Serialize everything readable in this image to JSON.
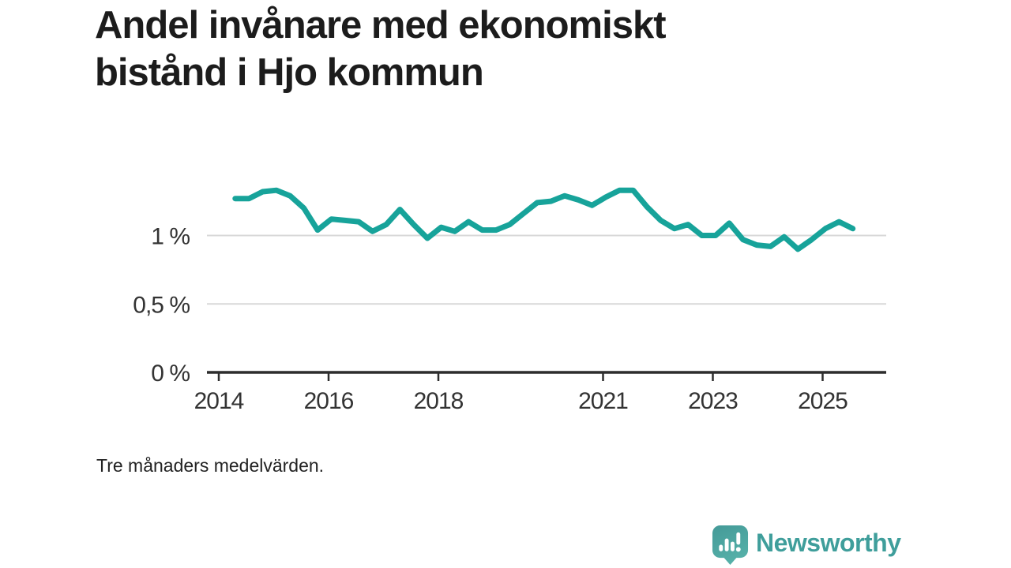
{
  "page": {
    "title": "Andel invånare med ekonomiskt bistånd i Hjo kommun",
    "title_lines": [
      "Andel invånare med ekonomiskt",
      "bistånd i Hjo kommun"
    ],
    "footnote": "Tre månaders medelvärden."
  },
  "brand": {
    "name": "Newsworthy",
    "icon": "speech-bubble-with-bar-chart-and-exclamation-icon"
  },
  "colors": {
    "background": "#ffffff",
    "title_text": "#1c1c1c",
    "axis_text": "#333333",
    "footnote_text": "#222222",
    "line": "#17a39a",
    "gridline": "#d8d8d8",
    "axis": "#2d2d2d",
    "brand_teal": "#47a29f",
    "brand_text": "#3f9e9b"
  },
  "chart_data": {
    "type": "line",
    "title": "Andel invånare med ekonomiskt bistånd i Hjo kommun",
    "subtitle": "Tre månaders medelvärden.",
    "series_name": "Andel invånare med ekonomiskt bistånd i Hjo kommun (tre månaders medelvärden)",
    "unit": "%",
    "decimal_separator": ",",
    "grid": "horizontal",
    "legend": "none",
    "xlim": [
      2013.78,
      2026.16
    ],
    "ylim": [
      0,
      1.45
    ],
    "x_ticks": [
      {
        "value": 2014,
        "label": "2014"
      },
      {
        "value": 2016,
        "label": "2016"
      },
      {
        "value": 2018,
        "label": "2018"
      },
      {
        "value": 2021,
        "label": "2021"
      },
      {
        "value": 2023,
        "label": "2023"
      },
      {
        "value": 2025,
        "label": "2025"
      }
    ],
    "y_ticks": [
      {
        "value": 1,
        "label": "1 %"
      },
      {
        "value": 0.5,
        "label": "0,5 %"
      },
      {
        "value": 0,
        "label": "0 %"
      }
    ],
    "x": [
      2014.3,
      2014.55,
      2014.8,
      2015.05,
      2015.3,
      2015.55,
      2015.8,
      2016.05,
      2016.3,
      2016.55,
      2016.8,
      2017.05,
      2017.3,
      2017.55,
      2017.8,
      2018.05,
      2018.3,
      2018.55,
      2018.8,
      2019.05,
      2019.3,
      2019.55,
      2019.8,
      2020.05,
      2020.3,
      2020.55,
      2020.8,
      2021.05,
      2021.3,
      2021.55,
      2021.8,
      2022.05,
      2022.3,
      2022.55,
      2022.8,
      2023.05,
      2023.3,
      2023.55,
      2023.8,
      2024.05,
      2024.3,
      2024.55,
      2024.8,
      2025.05,
      2025.3,
      2025.55
    ],
    "values": [
      1.27,
      1.27,
      1.32,
      1.33,
      1.29,
      1.2,
      1.04,
      1.12,
      1.11,
      1.1,
      1.03,
      1.08,
      1.19,
      1.08,
      0.98,
      1.06,
      1.03,
      1.1,
      1.04,
      1.04,
      1.08,
      1.16,
      1.24,
      1.25,
      1.29,
      1.26,
      1.22,
      1.28,
      1.33,
      1.33,
      1.21,
      1.11,
      1.05,
      1.08,
      1.0,
      1.0,
      1.09,
      0.97,
      0.93,
      0.92,
      0.99,
      0.9,
      0.97,
      1.05,
      1.1,
      1.05
    ]
  }
}
